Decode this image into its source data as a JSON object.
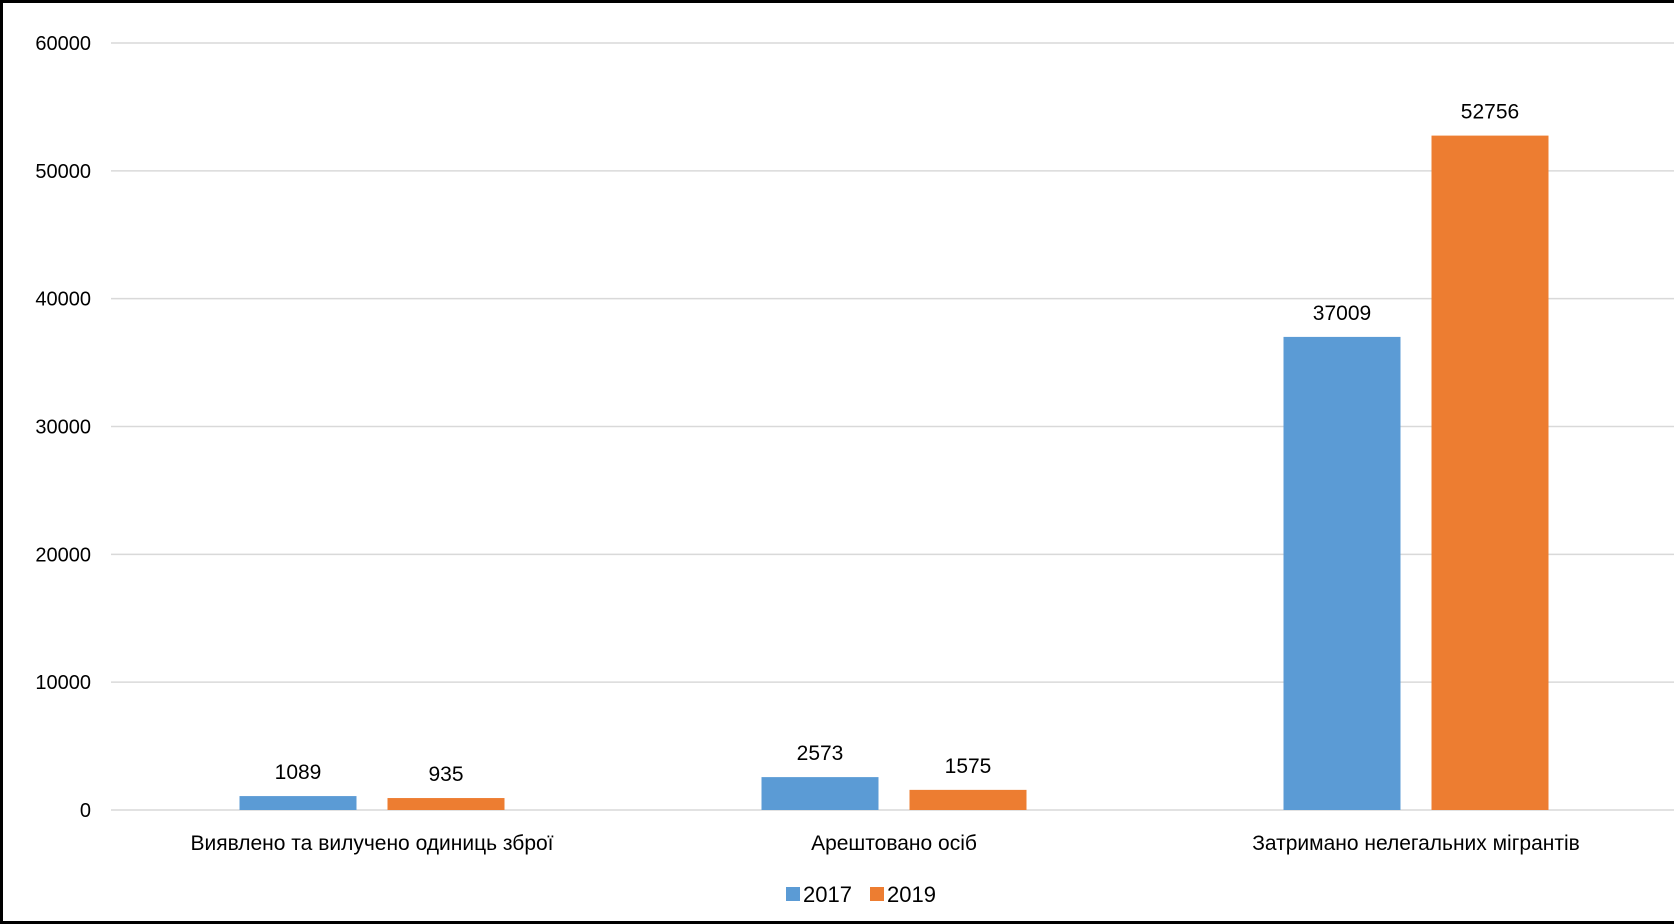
{
  "chart_data": {
    "type": "bar",
    "categories": [
      "Виявлено та вилучено одиниць зброї",
      "Арештовано осіб",
      "Затримано нелегальних мігрантів"
    ],
    "series": [
      {
        "name": "2017",
        "values": [
          1089,
          2573,
          37009
        ],
        "color": "#5b9bd5"
      },
      {
        "name": "2019",
        "values": [
          935,
          1575,
          52756
        ],
        "color": "#ed7d31"
      }
    ],
    "title": "",
    "xlabel": "",
    "ylabel": "",
    "ylim": [
      0,
      60000
    ],
    "yticks": [
      "0",
      "10000",
      "20000",
      "30000",
      "40000",
      "50000",
      "60000"
    ],
    "grid": true,
    "legend_position": "bottom",
    "data_labels": true
  }
}
